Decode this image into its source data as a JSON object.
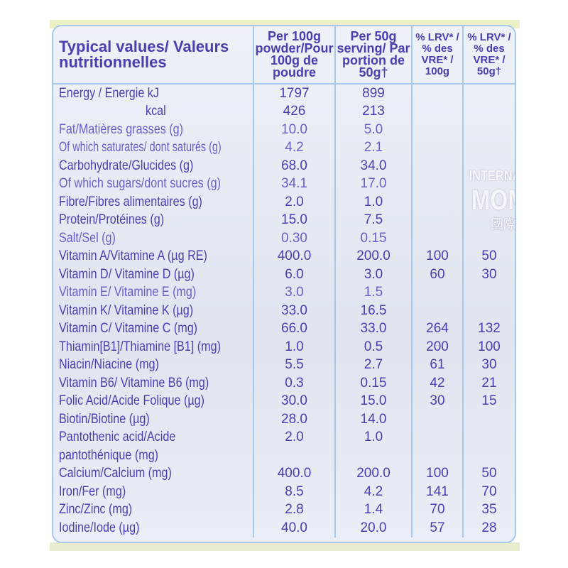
{
  "header": {
    "nutrient": "Typical values/ Valeurs nutritionnelles",
    "per100": "Per 100g powder/Pour 100g de poudre",
    "per50": "Per 50g serving/ Par portion de 50g†",
    "lrv100": "% LRV* / % des VRE* / 100g",
    "lrv50": "% LRV* / % des VRE* / 50g†"
  },
  "rows": [
    {
      "name": "Energy / Energie kJ",
      "per100": "1797",
      "per50": "899",
      "lrv100": "",
      "lrv50": ""
    },
    {
      "name": "kcal",
      "per100": "426",
      "per50": "213",
      "lrv100": "",
      "lrv50": ""
    },
    {
      "name": "Fat/Matières grasses (g)",
      "per100": "10.0",
      "per50": "5.0",
      "lrv100": "",
      "lrv50": ""
    },
    {
      "name": "Of which saturates/ dont saturés (g)",
      "per100": "4.2",
      "per50": "2.1",
      "lrv100": "",
      "lrv50": ""
    },
    {
      "name": "Carbohydrate/Glucides (g)",
      "per100": "68.0",
      "per50": "34.0",
      "lrv100": "",
      "lrv50": ""
    },
    {
      "name": "Of which sugars/dont sucres (g)",
      "per100": "34.1",
      "per50": "17.0",
      "lrv100": "",
      "lrv50": ""
    },
    {
      "name": "Fibre/Fibres alimentaires (g)",
      "per100": "2.0",
      "per50": "1.0",
      "lrv100": "",
      "lrv50": ""
    },
    {
      "name": "Protein/Protéines (g)",
      "per100": "15.0",
      "per50": "7.5",
      "lrv100": "",
      "lrv50": ""
    },
    {
      "name": "Salt/Sel (g)",
      "per100": "0.30",
      "per50": "0.15",
      "lrv100": "",
      "lrv50": ""
    },
    {
      "name": "Vitamin A/Vitamine A (µg RE)",
      "per100": "400.0",
      "per50": "200.0",
      "lrv100": "100",
      "lrv50": "50"
    },
    {
      "name": "Vitamin D/ Vitamine D (µg)",
      "per100": "6.0",
      "per50": "3.0",
      "lrv100": "60",
      "lrv50": "30"
    },
    {
      "name": "Vitamin E/ Vitamine E (mg)",
      "per100": "3.0",
      "per50": "1.5",
      "lrv100": "",
      "lrv50": ""
    },
    {
      "name": "Vitamin K/ Vitamine K (µg)",
      "per100": "33.0",
      "per50": "16.5",
      "lrv100": "",
      "lrv50": ""
    },
    {
      "name": "Vitamin C/ Vitamine C (mg)",
      "per100": "66.0",
      "per50": "33.0",
      "lrv100": "264",
      "lrv50": "132"
    },
    {
      "name": "Thiamin[B1]/Thiamine [B1] (mg)",
      "per100": "1.0",
      "per50": "0.5",
      "lrv100": "200",
      "lrv50": "100"
    },
    {
      "name": "Niacin/Niacine (mg)",
      "per100": "5.5",
      "per50": "2.7",
      "lrv100": "61",
      "lrv50": "30"
    },
    {
      "name": "Vitamin B6/ Vitamine B6 (mg)",
      "per100": "0.3",
      "per50": "0.15",
      "lrv100": "42",
      "lrv50": "21"
    },
    {
      "name": "Folic Acid/Acide Folique (µg)",
      "per100": "30.0",
      "per50": "15.0",
      "lrv100": "30",
      "lrv50": "15"
    },
    {
      "name": "Biotin/Biotine (µg)",
      "per100": "28.0",
      "per50": "14.0",
      "lrv100": "",
      "lrv50": ""
    },
    {
      "name": "Pantothenic acid/Acide",
      "per100": "2.0",
      "per50": "1.0",
      "lrv100": "",
      "lrv50": ""
    },
    {
      "name": "pantothénique (mg)",
      "per100": "",
      "per50": "",
      "lrv100": "",
      "lrv50": ""
    },
    {
      "name": "Calcium/Calcium (mg)",
      "per100": "400.0",
      "per50": "200.0",
      "lrv100": "100",
      "lrv50": "50"
    },
    {
      "name": "Iron/Fer (mg)",
      "per100": "8.5",
      "per50": "4.2",
      "lrv100": "141",
      "lrv50": "70"
    },
    {
      "name": "Zinc/Zinc (mg)",
      "per100": "2.8",
      "per50": "1.4",
      "lrv100": "70",
      "lrv50": "35"
    },
    {
      "name": "Iodine/Iode (µg)",
      "per100": "40.0",
      "per50": "20.0",
      "lrv100": "57",
      "lrv50": "28"
    }
  ],
  "watermark": {
    "line1": "INTERNATIONAL",
    "line2": "MOMMY",
    "line3": "國際媽咪"
  }
}
